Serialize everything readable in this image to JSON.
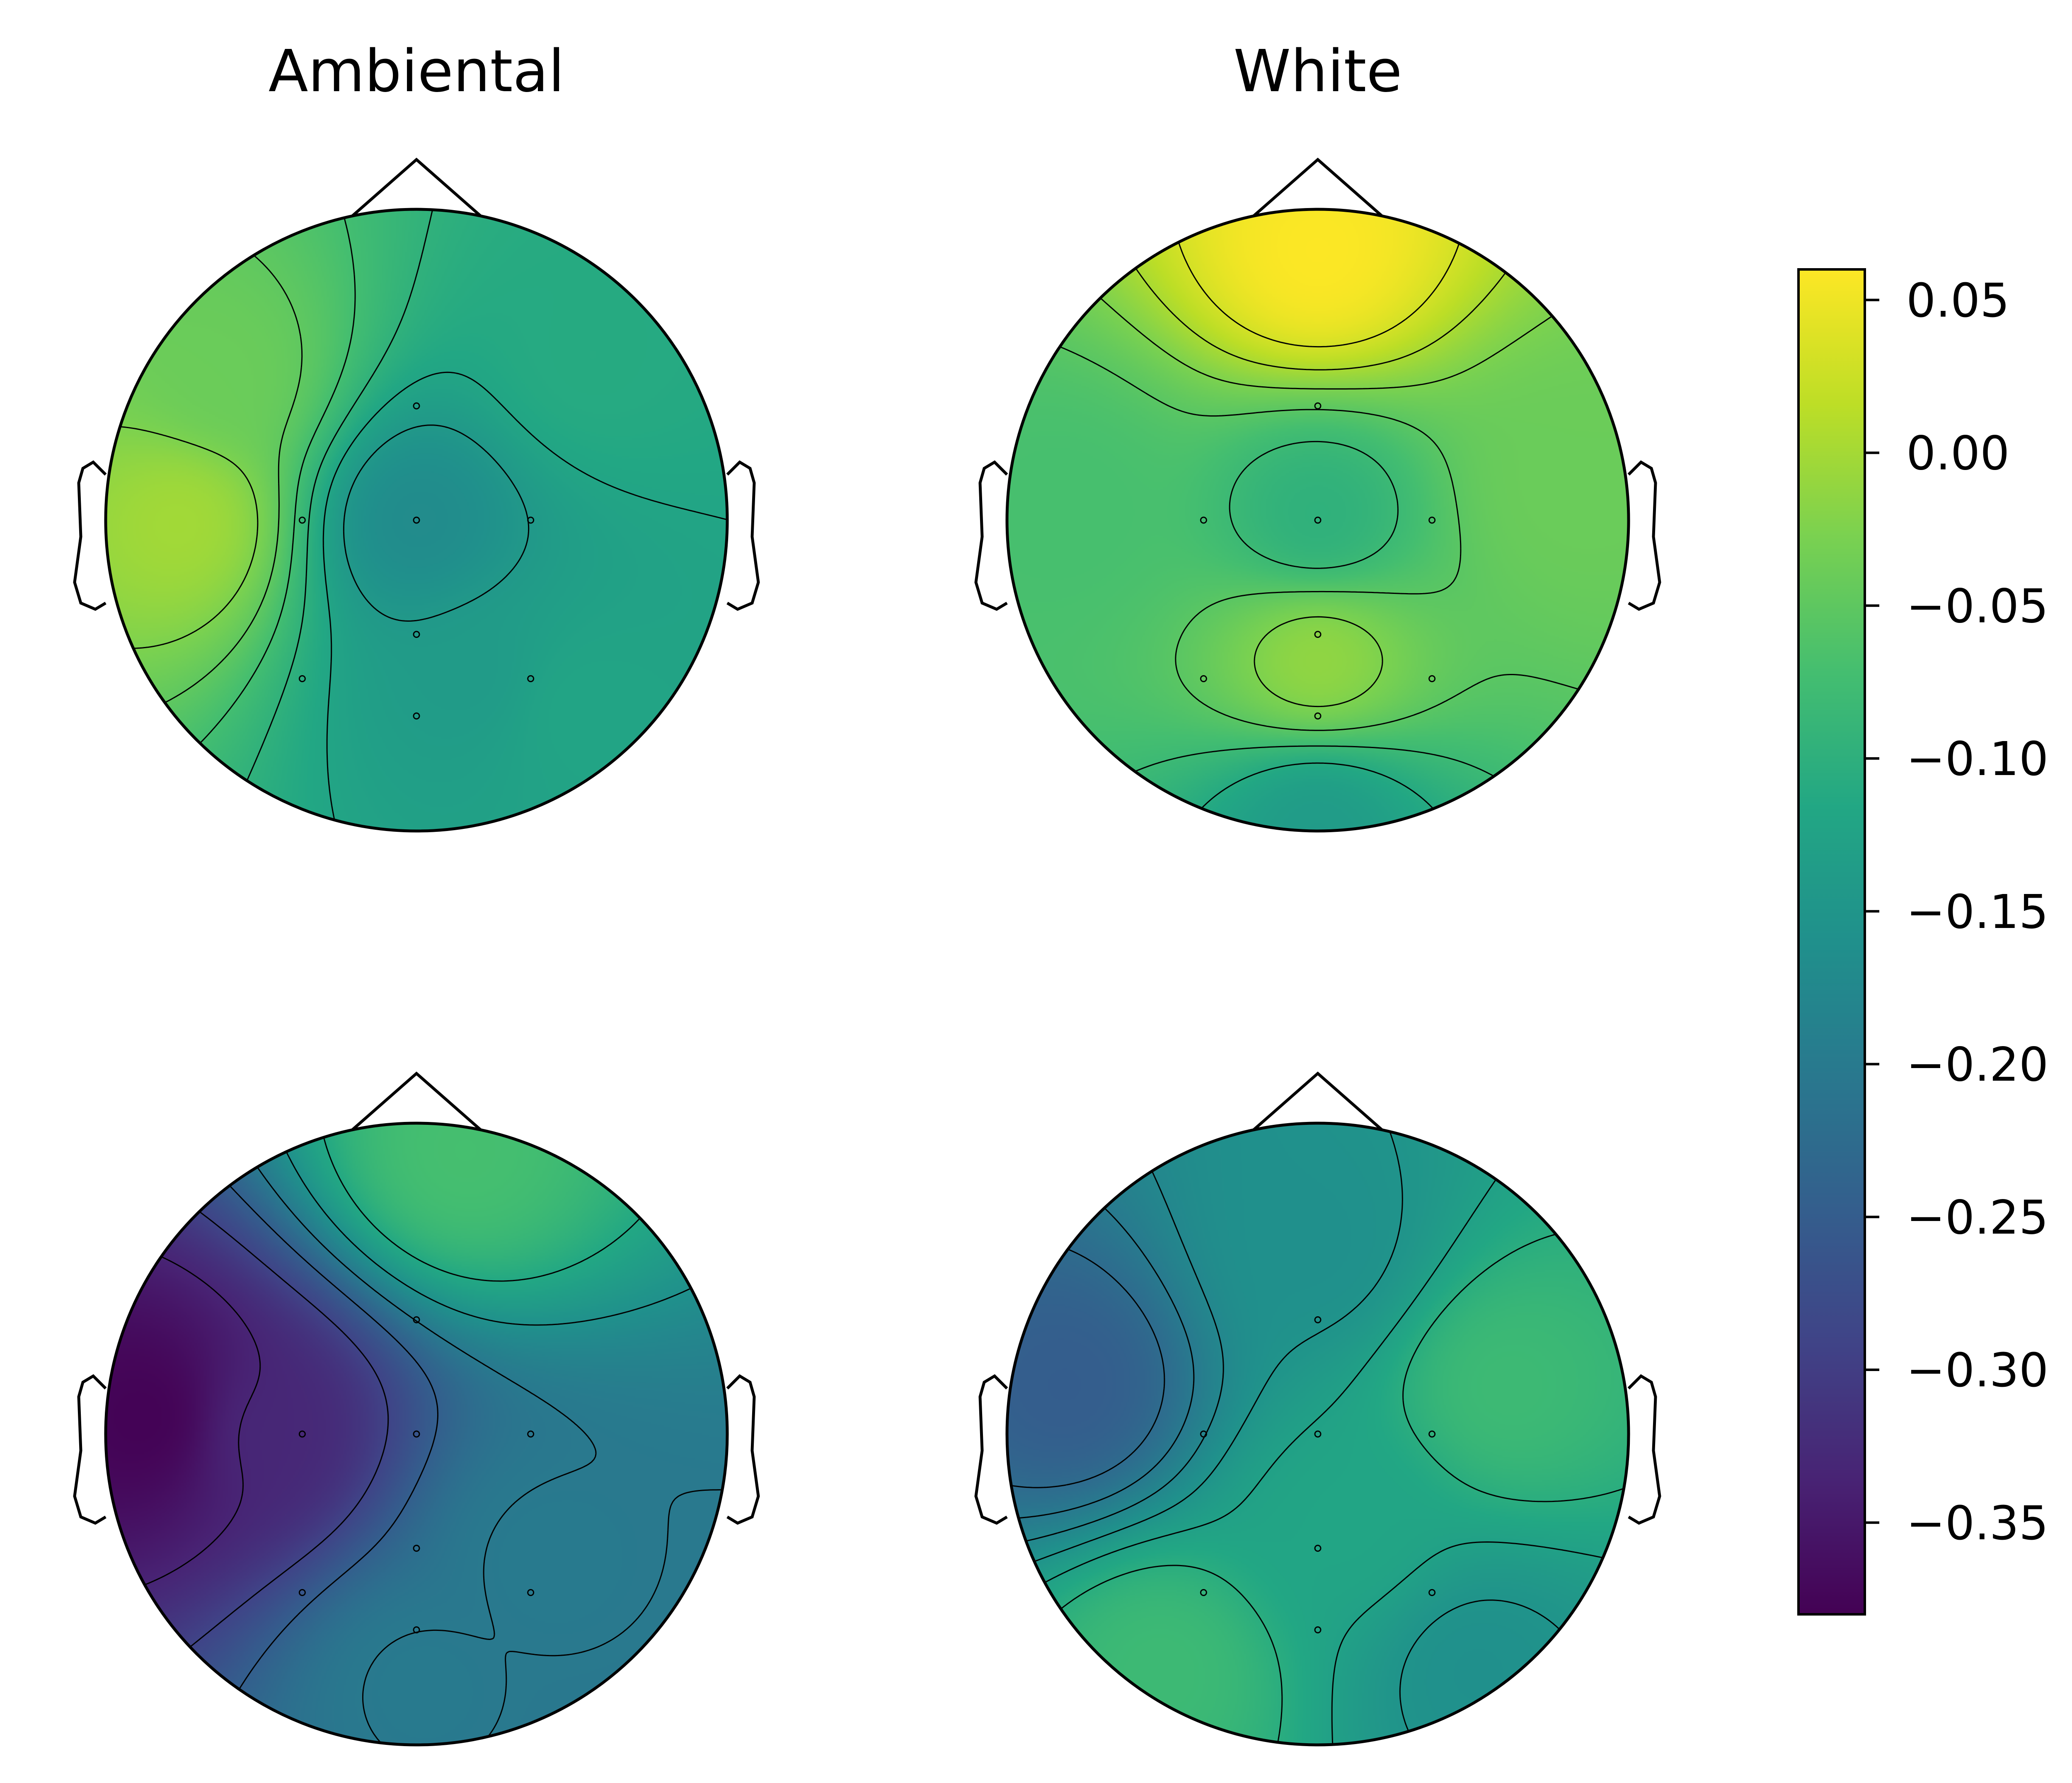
{
  "chart_data": {
    "type": "heatmap",
    "subtype": "topographic-map-grid",
    "columns": [
      "Ambiental",
      "White"
    ],
    "rows": 2,
    "colormap": "viridis",
    "colorbar": {
      "min": -0.38,
      "max": 0.06,
      "ticks": [
        0.05,
        0.0,
        -0.05,
        -0.1,
        -0.15,
        -0.2,
        -0.25,
        -0.3,
        -0.35
      ],
      "tick_labels": [
        "0.05",
        "0.00",
        "−0.05",
        "−0.10",
        "−0.15",
        "−0.20",
        "−0.25",
        "−0.30",
        "−0.35"
      ]
    },
    "panels": [
      {
        "title": "Ambiental",
        "row": 0,
        "sources": [
          {
            "x": -0.75,
            "y": 0.0,
            "v": 0.0
          },
          {
            "x": -0.62,
            "y": 0.45,
            "v": -0.04
          },
          {
            "x": 0.0,
            "y": 0.0,
            "v": -0.17
          },
          {
            "x": 0.55,
            "y": 0.5,
            "v": -0.11
          },
          {
            "x": 0.2,
            "y": -0.5,
            "v": -0.14
          },
          {
            "x": 0.5,
            "y": -0.6,
            "v": -0.12
          }
        ],
        "base": -0.12,
        "electrodes": [
          [
            0,
            0.49
          ],
          [
            -0.49,
            0
          ],
          [
            0,
            0
          ],
          [
            0.49,
            0
          ],
          [
            0,
            -0.49
          ],
          [
            -0.49,
            -0.68
          ],
          [
            0.49,
            -0.68
          ],
          [
            0,
            -0.84
          ]
        ]
      },
      {
        "title": "White",
        "row": 0,
        "sources": [
          {
            "x": 0.0,
            "y": 0.85,
            "v": 0.06
          },
          {
            "x": 0.0,
            "y": -0.45,
            "v": -0.01
          },
          {
            "x": 0.0,
            "y": 0.0,
            "v": -0.1
          },
          {
            "x": 0.0,
            "y": -0.98,
            "v": -0.14
          },
          {
            "x": 0.8,
            "y": 0.1,
            "v": -0.04
          },
          {
            "x": -0.8,
            "y": 0.05,
            "v": -0.07
          }
        ],
        "base": -0.05,
        "electrodes": [
          [
            0,
            0.49
          ],
          [
            -0.49,
            0
          ],
          [
            0,
            0
          ],
          [
            0.49,
            0
          ],
          [
            0,
            -0.49
          ],
          [
            -0.49,
            -0.68
          ],
          [
            0.49,
            -0.68
          ],
          [
            0,
            -0.84
          ]
        ]
      },
      {
        "title": "",
        "row": 1,
        "sources": [
          {
            "x": -0.85,
            "y": 0.05,
            "v": -0.38
          },
          {
            "x": -0.5,
            "y": 0.0,
            "v": -0.33
          },
          {
            "x": 0.15,
            "y": 0.9,
            "v": -0.07
          },
          {
            "x": 0.4,
            "y": -0.4,
            "v": -0.2
          },
          {
            "x": 0.0,
            "y": -0.8,
            "v": -0.2
          }
        ],
        "base": -0.2,
        "electrodes": [
          [
            0,
            0.49
          ],
          [
            -0.49,
            0
          ],
          [
            0,
            0
          ],
          [
            0.49,
            0
          ],
          [
            0,
            -0.49
          ],
          [
            -0.49,
            -0.68
          ],
          [
            0.49,
            -0.68
          ],
          [
            0,
            -0.84
          ]
        ]
      },
      {
        "title": "",
        "row": 1,
        "sources": [
          {
            "x": -0.8,
            "y": 0.15,
            "v": -0.25
          },
          {
            "x": 0.6,
            "y": 0.15,
            "v": -0.08
          },
          {
            "x": -0.5,
            "y": -0.75,
            "v": -0.08
          },
          {
            "x": 0.5,
            "y": -0.75,
            "v": -0.16
          },
          {
            "x": 0.0,
            "y": 0.6,
            "v": -0.16
          },
          {
            "x": 0.1,
            "y": -0.3,
            "v": -0.12
          }
        ],
        "base": -0.13,
        "electrodes": [
          [
            0,
            0.49
          ],
          [
            -0.49,
            0
          ],
          [
            0,
            0
          ],
          [
            0.49,
            0
          ],
          [
            0,
            -0.49
          ],
          [
            -0.49,
            -0.68
          ],
          [
            0.49,
            -0.68
          ],
          [
            0,
            -0.84
          ]
        ]
      }
    ]
  }
}
